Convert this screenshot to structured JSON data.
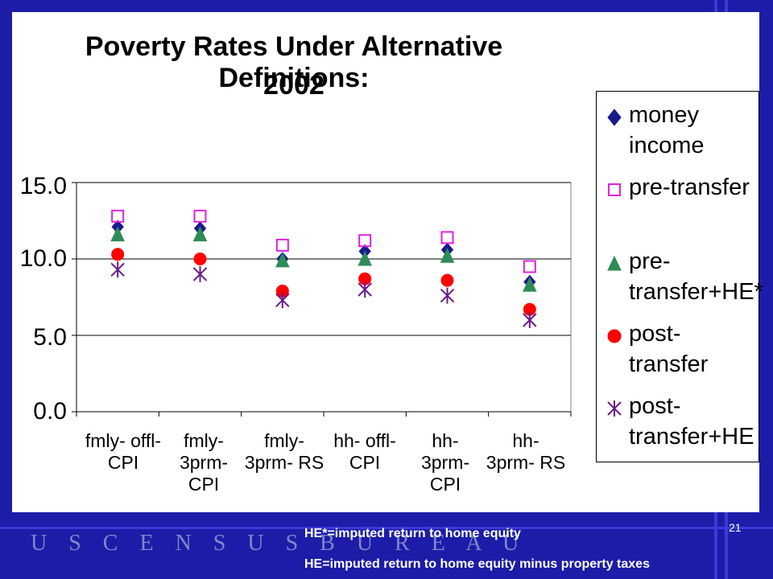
{
  "slide": {
    "page_number": "21",
    "wordmark": "U S C E N S U S B U R E A U",
    "note1": "HE*=imputed return to home equity",
    "note2": "HE=imputed return to home equity minus property taxes"
  },
  "chart_data": {
    "type": "scatter",
    "title_line1": "Poverty Rates Under Alternative Definitions:",
    "title_line2": "2002",
    "categories": [
      "fmly- offl-\nCPI",
      "fmly-\n3prm-\nCPI",
      "fmly-\n3prm- RS",
      "hh- offl-\nCPI",
      "hh-\n3prm-\nCPI",
      "hh-\n3prm- RS"
    ],
    "ylim": [
      0,
      15
    ],
    "yticks": [
      "0.0",
      "5.0",
      "10.0",
      "15.0"
    ],
    "grid": true,
    "legend_position": "right",
    "series": [
      {
        "name": "money income",
        "marker": "diamond",
        "color": "#1a1a8c",
        "values": [
          12.1,
          12.0,
          10.0,
          10.5,
          10.6,
          8.5
        ]
      },
      {
        "name": "pre-transfer",
        "marker": "square",
        "color": "#e020e0",
        "values": [
          12.8,
          12.8,
          10.9,
          11.2,
          11.4,
          9.5
        ]
      },
      {
        "name": "pre- transfer+HE*",
        "marker": "triangle",
        "color": "#2e8b57",
        "values": [
          11.6,
          11.6,
          9.9,
          10.0,
          10.2,
          8.3
        ]
      },
      {
        "name": "post-transfer",
        "marker": "circle",
        "color": "#ff0000",
        "values": [
          10.3,
          10.0,
          7.9,
          8.7,
          8.6,
          6.7
        ]
      },
      {
        "name": "post- transfer+HE",
        "marker": "asterisk",
        "color": "#6a1b8a",
        "values": [
          9.3,
          9.0,
          7.3,
          8.0,
          7.6,
          6.0
        ]
      }
    ]
  }
}
